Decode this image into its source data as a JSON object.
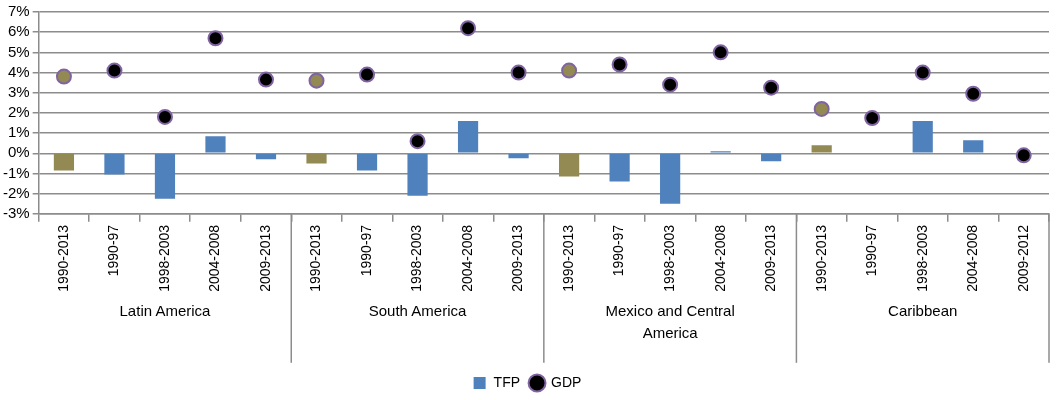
{
  "chart_data": {
    "type": "bar",
    "categories": [
      "1990-2013",
      "1990-97",
      "1998-2003",
      "2004-2008",
      "2009-2013",
      "1990-2013",
      "1990-97",
      "1998-2003",
      "2004-2008",
      "2009-2013",
      "1990-2013",
      "1990-97",
      "1998-2003",
      "2004-2008",
      "2009-2013",
      "1990-2013",
      "1990-97",
      "1998-2003",
      "2004-2008",
      "2009-2012"
    ],
    "annotations": [
      "Latin America",
      "South America",
      "Mexico and Central America",
      "Caribbean"
    ],
    "series": [
      {
        "name": "TFP",
        "color": "#4f81bd",
        "colors": [
          "#938953",
          "#4f81bd",
          "#4f81bd",
          "#4f81bd",
          "#4f81bd",
          "#938953",
          "#4f81bd",
          "#4f81bd",
          "#4f81bd",
          "#4f81bd",
          "#938953",
          "#4f81bd",
          "#4f81bd",
          "#4f81bd",
          "#4f81bd",
          "#938953",
          "#4f81bd",
          "#4f81bd",
          "#4f81bd",
          "#4f81bd"
        ],
        "values": [
          -0.85,
          -1.05,
          -2.25,
          0.85,
          -0.3,
          -0.5,
          -0.85,
          -2.1,
          1.6,
          -0.25,
          -1.15,
          -1.4,
          -2.5,
          0.1,
          -0.4,
          0.4,
          null,
          1.6,
          0.65,
          null
        ]
      },
      {
        "name": "GDP",
        "type": "scatter",
        "color": "#000000",
        "colors": [
          "#938953",
          "#000000",
          "#000000",
          "#000000",
          "#000000",
          "#938953",
          "#000000",
          "#000000",
          "#000000",
          "#000000",
          "#938953",
          "#000000",
          "#000000",
          "#000000",
          "#000000",
          "#938953",
          "#000000",
          "#000000",
          "#000000",
          "#000000"
        ],
        "values": [
          3.8,
          4.1,
          1.8,
          5.7,
          3.65,
          3.6,
          3.9,
          0.6,
          6.2,
          4.0,
          4.1,
          4.4,
          3.4,
          5.0,
          3.25,
          2.2,
          1.75,
          4.0,
          2.95,
          -0.1
        ]
      }
    ],
    "ylim": [
      -3,
      7
    ],
    "yticks": [
      {
        "value": -3,
        "label": "-3%"
      },
      {
        "value": -2,
        "label": "-2%"
      },
      {
        "value": -1,
        "label": "-1%"
      },
      {
        "value": 0,
        "label": "0%"
      },
      {
        "value": 1,
        "label": "1%"
      },
      {
        "value": 2,
        "label": "2%"
      },
      {
        "value": 3,
        "label": "3%"
      },
      {
        "value": 4,
        "label": "4%"
      },
      {
        "value": 5,
        "label": "5%"
      },
      {
        "value": 6,
        "label": "6%"
      },
      {
        "value": 7,
        "label": "7%"
      }
    ],
    "grid": "y",
    "legend": "bottom",
    "marker": "circle"
  }
}
